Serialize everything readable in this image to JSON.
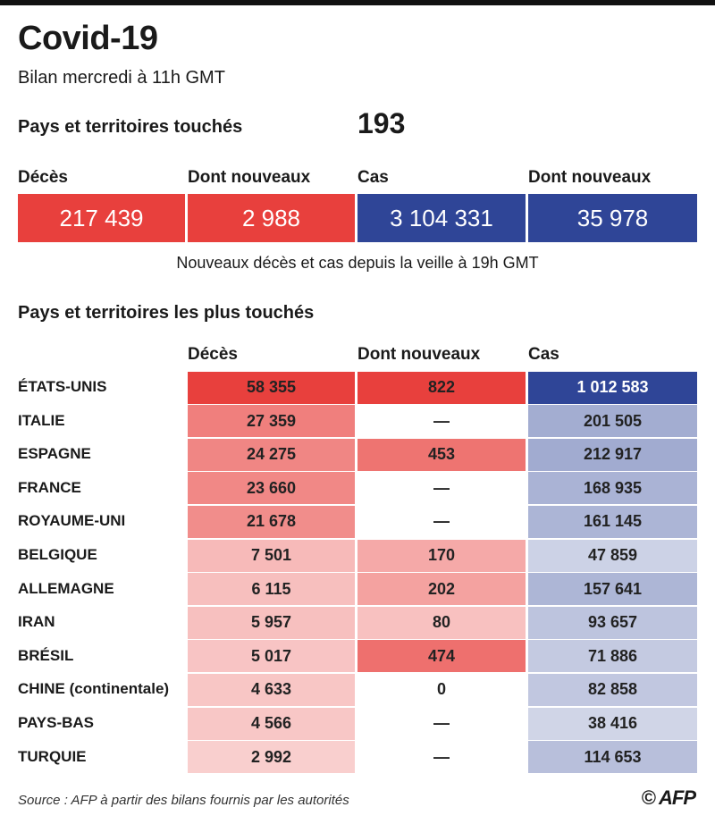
{
  "title": "Covid-19",
  "subtitle": "Bilan mercredi à 11h GMT",
  "countries_affected": {
    "label": "Pays et territoires touchés",
    "value": "193"
  },
  "summary": [
    {
      "label": "Décès",
      "value": "217 439",
      "color": "#e8403d"
    },
    {
      "label": "Dont nouveaux",
      "value": "2 988",
      "color": "#e8403d"
    },
    {
      "label": "Cas",
      "value": "3 104 331",
      "color": "#2f4597"
    },
    {
      "label": "Dont nouveaux",
      "value": "35 978",
      "color": "#2f4597"
    }
  ],
  "summary_note": "Nouveaux décès et cas depuis la veille à 19h GMT",
  "source": "Source : AFP à partir des bilans fournis par les autorités",
  "credit": "© AFP",
  "colors": {
    "deaths": "#e8403d",
    "cases": "#2f4597"
  },
  "chart_data": {
    "type": "table",
    "title": "Pays et territoires les plus touchés",
    "columns": [
      "Décès",
      "Dont nouveaux",
      "Cas"
    ],
    "rows": [
      {
        "country": "ÉTATS-UNIS",
        "deaths": 58355,
        "new_deaths": 822,
        "cases": 1012583,
        "deaths_text": "58 355",
        "new_text": "822",
        "cases_text": "1 012 583"
      },
      {
        "country": "ITALIE",
        "deaths": 27359,
        "new_deaths": null,
        "cases": 201505,
        "deaths_text": "27 359",
        "new_text": "—",
        "cases_text": "201 505"
      },
      {
        "country": "ESPAGNE",
        "deaths": 24275,
        "new_deaths": 453,
        "cases": 212917,
        "deaths_text": "24 275",
        "new_text": "453",
        "cases_text": "212 917"
      },
      {
        "country": "FRANCE",
        "deaths": 23660,
        "new_deaths": null,
        "cases": 168935,
        "deaths_text": "23 660",
        "new_text": "—",
        "cases_text": "168 935"
      },
      {
        "country": "ROYAUME-UNI",
        "deaths": 21678,
        "new_deaths": null,
        "cases": 161145,
        "deaths_text": "21 678",
        "new_text": "—",
        "cases_text": "161 145"
      },
      {
        "country": "BELGIQUE",
        "deaths": 7501,
        "new_deaths": 170,
        "cases": 47859,
        "deaths_text": "7 501",
        "new_text": "170",
        "cases_text": "47 859"
      },
      {
        "country": "ALLEMAGNE",
        "deaths": 6115,
        "new_deaths": 202,
        "cases": 157641,
        "deaths_text": "6 115",
        "new_text": "202",
        "cases_text": "157 641"
      },
      {
        "country": "IRAN",
        "deaths": 5957,
        "new_deaths": 80,
        "cases": 93657,
        "deaths_text": "5 957",
        "new_text": "80",
        "cases_text": "93 657"
      },
      {
        "country": "BRÉSIL",
        "deaths": 5017,
        "new_deaths": 474,
        "cases": 71886,
        "deaths_text": "5 017",
        "new_text": "474",
        "cases_text": "71 886"
      },
      {
        "country": "CHINE (continentale)",
        "deaths": 4633,
        "new_deaths": 0,
        "cases": 82858,
        "deaths_text": "4 633",
        "new_text": "0",
        "cases_text": "82 858"
      },
      {
        "country": "PAYS-BAS",
        "deaths": 4566,
        "new_deaths": null,
        "cases": 38416,
        "deaths_text": "4 566",
        "new_text": "—",
        "cases_text": "38 416"
      },
      {
        "country": "TURQUIE",
        "deaths": 2992,
        "new_deaths": null,
        "cases": 114653,
        "deaths_text": "2 992",
        "new_text": "—",
        "cases_text": "114 653"
      }
    ]
  }
}
